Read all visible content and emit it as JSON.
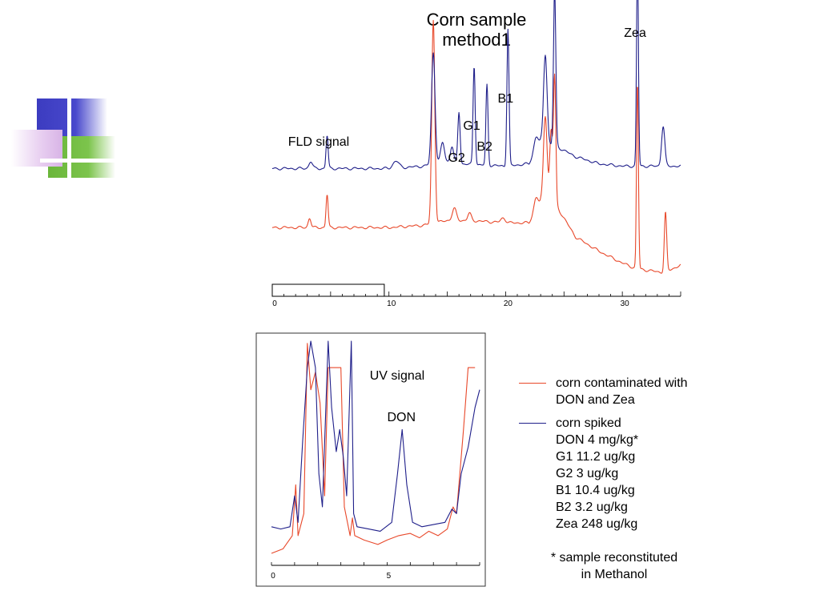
{
  "slide": {
    "title_line1": "Corn sample",
    "title_line2": "method1",
    "footnote_line1": "* sample reconstituted",
    "footnote_line2": "in Methanol"
  },
  "colors": {
    "series_red": "#e8482a",
    "series_blue": "#1f1f8a",
    "deco_blue": "#3c3cc0",
    "deco_green": "#6ab63a",
    "deco_pink": "#d8b4e6"
  },
  "legend": [
    {
      "series": "red",
      "lines": [
        "corn contaminated with",
        "DON and Zea"
      ]
    },
    {
      "series": "blue",
      "lines": [
        "corn spiked",
        "DON  4 mg/kg*",
        "G1   11.2 ug/kg",
        "G2   3 ug/kg",
        "B1   10.4 ug/kg",
        "B2   3.2 ug/kg",
        "Zea 248 ug/kg"
      ]
    }
  ],
  "chart_data": [
    {
      "type": "line",
      "title": "FLD signal",
      "xlim": [
        0,
        35
      ],
      "ylim": [
        0,
        100
      ],
      "x_ticks": [
        0,
        10,
        20,
        30
      ],
      "peak_labels": [
        {
          "text": "G2",
          "x": 16.0
        },
        {
          "text": "G1",
          "x": 17.3
        },
        {
          "text": "B2",
          "x": 18.4
        },
        {
          "text": "B1",
          "x": 20.2
        },
        {
          "text": "Zea",
          "x": 31.3
        }
      ],
      "series": [
        {
          "color": "red",
          "baseline": [
            [
              0,
              24
            ],
            [
              5,
              24
            ],
            [
              10,
              24
            ],
            [
              13,
              25
            ],
            [
              15,
              27
            ],
            [
              17,
              27
            ],
            [
              20,
              26
            ],
            [
              22,
              26
            ],
            [
              23,
              34
            ],
            [
              24.5,
              32
            ],
            [
              26,
              20
            ],
            [
              28,
              14
            ],
            [
              30,
              9
            ],
            [
              31,
              7
            ],
            [
              32,
              6
            ],
            [
              33.5,
              5
            ],
            [
              35,
              8
            ]
          ],
          "peaks": [
            [
              3.2,
              4,
              0.12
            ],
            [
              4.7,
              14,
              0.09
            ],
            [
              13.8,
              86,
              0.13
            ],
            [
              15.6,
              5,
              0.18
            ],
            [
              16.9,
              3,
              0.15
            ],
            [
              19.8,
              2,
              0.2
            ],
            [
              22.6,
              6,
              0.18
            ],
            [
              23.4,
              38,
              0.16
            ],
            [
              23.9,
              32,
              0.12
            ],
            [
              24.2,
              55,
              0.1
            ],
            [
              31.3,
              79,
              0.08
            ],
            [
              33.7,
              25,
              0.1
            ]
          ]
        },
        {
          "color": "blue",
          "baseline": [
            [
              0,
              49
            ],
            [
              5,
              49
            ],
            [
              10,
              49
            ],
            [
              13,
              50
            ],
            [
              14.6,
              52
            ],
            [
              16,
              51
            ],
            [
              20,
              50
            ],
            [
              22,
              51
            ],
            [
              23,
              60
            ],
            [
              24.5,
              58
            ],
            [
              26,
              54
            ],
            [
              28,
              51
            ],
            [
              30,
              50
            ],
            [
              31,
              50
            ],
            [
              33,
              50
            ],
            [
              35,
              50
            ]
          ],
          "peaks": [
            [
              3.3,
              3,
              0.15
            ],
            [
              4.7,
              14,
              0.09
            ],
            [
              10.6,
              3,
              0.25
            ],
            [
              13.8,
              47,
              0.15
            ],
            [
              14.6,
              8,
              0.16
            ],
            [
              15.4,
              7,
              0.14
            ],
            [
              16.0,
              22,
              0.1
            ],
            [
              17.3,
              42,
              0.09
            ],
            [
              18.4,
              34,
              0.09
            ],
            [
              20.2,
              58,
              0.09
            ],
            [
              22.6,
              6,
              0.18
            ],
            [
              23.4,
              38,
              0.15
            ],
            [
              24.2,
              66,
              0.1
            ],
            [
              31.3,
              88,
              0.08
            ],
            [
              33.5,
              17,
              0.14
            ]
          ]
        }
      ]
    },
    {
      "type": "line",
      "title": "UV signal",
      "xlim": [
        0,
        9
      ],
      "ylim": [
        0,
        100
      ],
      "x_ticks": [
        0,
        5
      ],
      "peak_labels": [
        {
          "text": "DON",
          "x": 5.65
        }
      ],
      "series": [
        {
          "color": "red",
          "points": [
            [
              0,
              4
            ],
            [
              0.5,
              6
            ],
            [
              0.9,
              12
            ],
            [
              1.05,
              35
            ],
            [
              1.15,
              12
            ],
            [
              1.4,
              22
            ],
            [
              1.55,
              99
            ],
            [
              1.7,
              78
            ],
            [
              1.9,
              86
            ],
            [
              2.1,
              72
            ],
            [
              2.3,
              30
            ],
            [
              2.45,
              88
            ],
            [
              2.6,
              88
            ],
            [
              3.0,
              88
            ],
            [
              3.15,
              25
            ],
            [
              3.4,
              12
            ],
            [
              3.5,
              20
            ],
            [
              3.6,
              12
            ],
            [
              4.0,
              10
            ],
            [
              4.6,
              8
            ],
            [
              5.0,
              10
            ],
            [
              5.5,
              12
            ],
            [
              6.0,
              13
            ],
            [
              6.4,
              11
            ],
            [
              6.8,
              14
            ],
            [
              7.2,
              12
            ],
            [
              7.6,
              15
            ],
            [
              7.85,
              25
            ],
            [
              8.0,
              22
            ],
            [
              8.3,
              60
            ],
            [
              8.5,
              88
            ],
            [
              8.8,
              88
            ]
          ]
        },
        {
          "color": "blue",
          "points": [
            [
              0,
              16
            ],
            [
              0.4,
              15
            ],
            [
              0.8,
              16
            ],
            [
              1.0,
              30
            ],
            [
              1.15,
              18
            ],
            [
              1.35,
              55
            ],
            [
              1.55,
              88
            ],
            [
              1.7,
              100
            ],
            [
              1.9,
              88
            ],
            [
              2.05,
              40
            ],
            [
              2.2,
              25
            ],
            [
              2.45,
              100
            ],
            [
              2.6,
              70
            ],
            [
              2.8,
              50
            ],
            [
              2.95,
              60
            ],
            [
              3.1,
              48
            ],
            [
              3.25,
              30
            ],
            [
              3.45,
              100
            ],
            [
              3.55,
              22
            ],
            [
              3.7,
              16
            ],
            [
              4.2,
              15
            ],
            [
              4.7,
              14
            ],
            [
              5.2,
              18
            ],
            [
              5.45,
              40
            ],
            [
              5.65,
              60
            ],
            [
              5.85,
              35
            ],
            [
              6.1,
              18
            ],
            [
              6.5,
              16
            ],
            [
              7.0,
              17
            ],
            [
              7.5,
              18
            ],
            [
              7.8,
              24
            ],
            [
              8.0,
              22
            ],
            [
              8.2,
              40
            ],
            [
              8.5,
              52
            ],
            [
              8.8,
              70
            ],
            [
              9.0,
              78
            ]
          ]
        }
      ]
    }
  ]
}
